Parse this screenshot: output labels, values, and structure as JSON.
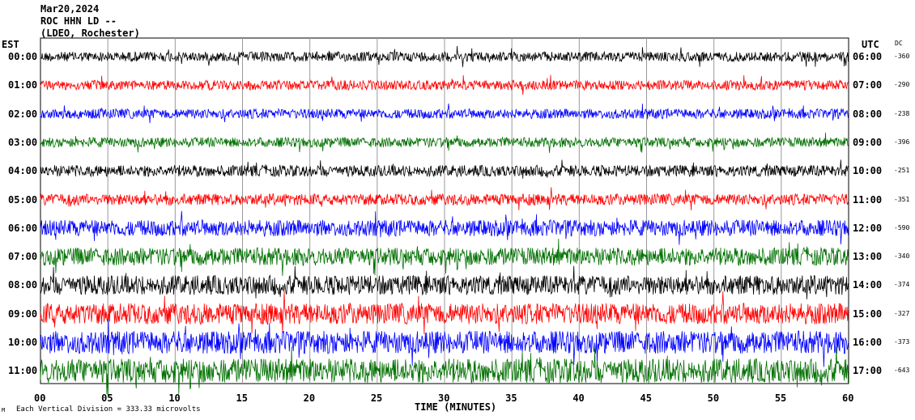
{
  "header": {
    "date": "Mar20,2024",
    "station": "ROC HHN LD --",
    "network": "(LDEO, Rochester)"
  },
  "left_axis_title": "EST",
  "right_axis_title": "UTC",
  "dc_title": "DC",
  "footer": {
    "scale_note": "Each Vertical Division = 333.33 microvolts",
    "logo": "M"
  },
  "chart_data": {
    "type": "line",
    "subtype": "helicorder seismogram",
    "xlabel": "TIME (MINUTES)",
    "xlim": [
      0,
      60
    ],
    "x_ticks": [
      "00",
      "05",
      "10",
      "15",
      "20",
      "25",
      "30",
      "35",
      "40",
      "45",
      "50",
      "55",
      "60"
    ],
    "grid": "vertical lines every 5 minutes",
    "trace_colors": [
      "#000000",
      "#ff0000",
      "#0000ff",
      "#007000"
    ],
    "rows": [
      {
        "est": "00:00",
        "utc": "06:00",
        "dc": "-360"
      },
      {
        "est": "01:00",
        "utc": "07:00",
        "dc": "-290"
      },
      {
        "est": "02:00",
        "utc": "08:00",
        "dc": "-238"
      },
      {
        "est": "03:00",
        "utc": "09:00",
        "dc": "-396"
      },
      {
        "est": "04:00",
        "utc": "10:00",
        "dc": "-251"
      },
      {
        "est": "05:00",
        "utc": "11:00",
        "dc": "-351"
      },
      {
        "est": "06:00",
        "utc": "12:00",
        "dc": "-590"
      },
      {
        "est": "07:00",
        "utc": "13:00",
        "dc": "-340"
      },
      {
        "est": "08:00",
        "utc": "14:00",
        "dc": "-374"
      },
      {
        "est": "09:00",
        "utc": "15:00",
        "dc": "-327"
      },
      {
        "est": "10:00",
        "utc": "16:00",
        "dc": "-373"
      },
      {
        "est": "11:00",
        "utc": "17:00",
        "dc": "-643"
      }
    ]
  }
}
